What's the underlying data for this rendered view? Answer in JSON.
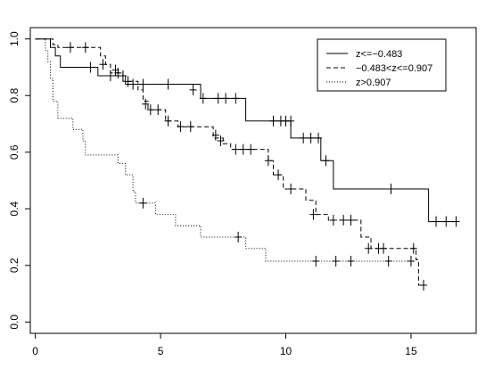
{
  "chart_data": {
    "type": "line",
    "title": "",
    "xlabel": "",
    "ylabel": "",
    "xlim": [
      -0.2,
      17.6
    ],
    "ylim": [
      -0.04,
      1.04
    ],
    "x_ticks": [
      0,
      5,
      10,
      15
    ],
    "y_ticks": [
      0.0,
      0.2,
      0.4,
      0.6,
      0.8,
      1.0
    ],
    "grid": false,
    "legend_position": "top-right",
    "series": [
      {
        "name": "z<=−0.483",
        "line_style": "solid",
        "steps": [
          [
            0,
            1.0
          ],
          [
            0.6,
            0.97
          ],
          [
            0.8,
            0.94
          ],
          [
            1.0,
            0.9
          ],
          [
            2.5,
            0.87
          ],
          [
            3.6,
            0.84
          ],
          [
            6.6,
            0.79
          ],
          [
            8.4,
            0.71
          ],
          [
            10.2,
            0.65
          ],
          [
            11.4,
            0.57
          ],
          [
            11.9,
            0.47
          ],
          [
            15.7,
            0.355
          ],
          [
            16.8,
            0.355
          ]
        ],
        "censored": [
          [
            2.2,
            0.9
          ],
          [
            3.0,
            0.87
          ],
          [
            3.5,
            0.87
          ],
          [
            4.3,
            0.84
          ],
          [
            5.3,
            0.84
          ],
          [
            6.3,
            0.82
          ],
          [
            6.7,
            0.79
          ],
          [
            7.3,
            0.79
          ],
          [
            7.6,
            0.79
          ],
          [
            8.0,
            0.79
          ],
          [
            9.5,
            0.71
          ],
          [
            9.8,
            0.71
          ],
          [
            10.0,
            0.71
          ],
          [
            10.2,
            0.71
          ],
          [
            10.7,
            0.65
          ],
          [
            11.0,
            0.65
          ],
          [
            11.3,
            0.65
          ],
          [
            11.6,
            0.57
          ],
          [
            14.2,
            0.47
          ],
          [
            16.0,
            0.355
          ],
          [
            16.4,
            0.355
          ],
          [
            16.8,
            0.355
          ]
        ]
      },
      {
        "name": "−0.483<z<=0.907",
        "line_style": "dashed",
        "steps": [
          [
            0,
            1.0
          ],
          [
            0.7,
            0.98
          ],
          [
            0.9,
            0.97
          ],
          [
            2.6,
            0.94
          ],
          [
            2.8,
            0.91
          ],
          [
            3.0,
            0.88
          ],
          [
            3.5,
            0.85
          ],
          [
            4.1,
            0.82
          ],
          [
            4.3,
            0.78
          ],
          [
            4.5,
            0.75
          ],
          [
            5.2,
            0.71
          ],
          [
            5.7,
            0.69
          ],
          [
            7.1,
            0.65
          ],
          [
            7.5,
            0.63
          ],
          [
            7.8,
            0.61
          ],
          [
            9.3,
            0.57
          ],
          [
            9.5,
            0.52
          ],
          [
            9.9,
            0.47
          ],
          [
            10.8,
            0.43
          ],
          [
            11.2,
            0.38
          ],
          [
            11.7,
            0.36
          ],
          [
            13.0,
            0.3
          ],
          [
            13.4,
            0.26
          ],
          [
            15.2,
            0.22
          ],
          [
            15.3,
            0.13
          ],
          [
            15.6,
            0.13
          ]
        ],
        "censored": [
          [
            1.4,
            0.97
          ],
          [
            2.0,
            0.97
          ],
          [
            2.7,
            0.91
          ],
          [
            3.2,
            0.89
          ],
          [
            3.3,
            0.88
          ],
          [
            3.7,
            0.85
          ],
          [
            3.9,
            0.84
          ],
          [
            4.4,
            0.77
          ],
          [
            4.6,
            0.75
          ],
          [
            4.9,
            0.75
          ],
          [
            5.3,
            0.71
          ],
          [
            5.8,
            0.69
          ],
          [
            6.2,
            0.69
          ],
          [
            7.2,
            0.66
          ],
          [
            7.4,
            0.64
          ],
          [
            8.0,
            0.61
          ],
          [
            8.3,
            0.61
          ],
          [
            8.6,
            0.61
          ],
          [
            9.3,
            0.57
          ],
          [
            9.7,
            0.52
          ],
          [
            10.2,
            0.47
          ],
          [
            11.1,
            0.38
          ],
          [
            11.9,
            0.36
          ],
          [
            12.3,
            0.36
          ],
          [
            12.6,
            0.36
          ],
          [
            13.3,
            0.26
          ],
          [
            13.7,
            0.26
          ],
          [
            13.9,
            0.26
          ],
          [
            15.1,
            0.26
          ],
          [
            15.5,
            0.13
          ]
        ]
      },
      {
        "name": "z>0.907",
        "line_style": "dotted",
        "steps": [
          [
            0,
            1.0
          ],
          [
            0.4,
            0.96
          ],
          [
            0.5,
            0.92
          ],
          [
            0.6,
            0.86
          ],
          [
            0.7,
            0.78
          ],
          [
            0.9,
            0.72
          ],
          [
            1.5,
            0.68
          ],
          [
            1.9,
            0.64
          ],
          [
            2.0,
            0.59
          ],
          [
            3.3,
            0.56
          ],
          [
            3.6,
            0.52
          ],
          [
            3.9,
            0.46
          ],
          [
            4.0,
            0.42
          ],
          [
            4.8,
            0.38
          ],
          [
            5.6,
            0.34
          ],
          [
            6.6,
            0.3
          ],
          [
            8.4,
            0.26
          ],
          [
            9.2,
            0.215
          ],
          [
            15.1,
            0.215
          ]
        ],
        "censored": [
          [
            4.3,
            0.42
          ],
          [
            8.1,
            0.3
          ],
          [
            11.2,
            0.215
          ],
          [
            12.0,
            0.215
          ],
          [
            12.6,
            0.215
          ],
          [
            14.1,
            0.215
          ],
          [
            15.0,
            0.215
          ]
        ]
      }
    ]
  }
}
